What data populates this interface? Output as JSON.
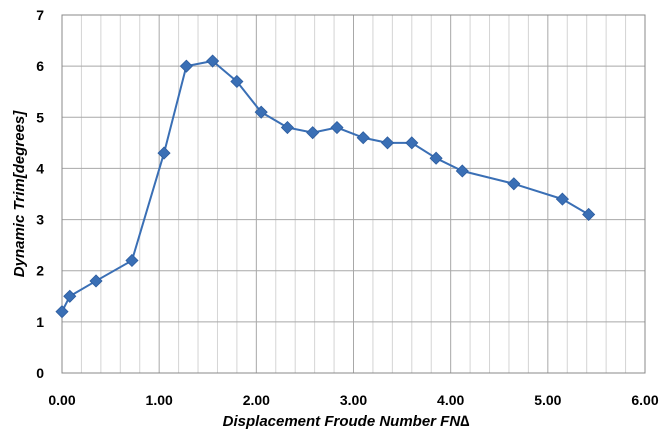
{
  "chart_data": {
    "type": "line",
    "title": "",
    "xlabel": "Displacement Froude Number FN∆",
    "ylabel": "Dynamic Trim[degrees]",
    "xlim": [
      0,
      6
    ],
    "ylim": [
      0,
      7
    ],
    "x_ticks": [
      "0.00",
      "1.00",
      "2.00",
      "3.00",
      "4.00",
      "5.00",
      "6.00"
    ],
    "y_ticks": [
      "0",
      "1",
      "2",
      "3",
      "4",
      "5",
      "6",
      "7"
    ],
    "grid": true,
    "legend": "none",
    "series_color": "#3A6FB5",
    "series": [
      {
        "x": [
          0.0,
          0.08,
          0.35,
          0.72,
          1.05,
          1.28,
          1.55,
          1.8,
          2.05,
          2.32,
          2.58,
          2.83,
          3.1,
          3.35,
          3.6,
          3.85,
          4.12,
          4.65,
          5.15,
          5.42
        ],
        "y": [
          1.2,
          1.5,
          1.8,
          2.2,
          4.3,
          6.0,
          6.1,
          5.7,
          5.1,
          4.8,
          4.7,
          4.8,
          4.6,
          4.5,
          4.5,
          4.2,
          3.95,
          3.7,
          3.4,
          3.1
        ]
      }
    ]
  }
}
